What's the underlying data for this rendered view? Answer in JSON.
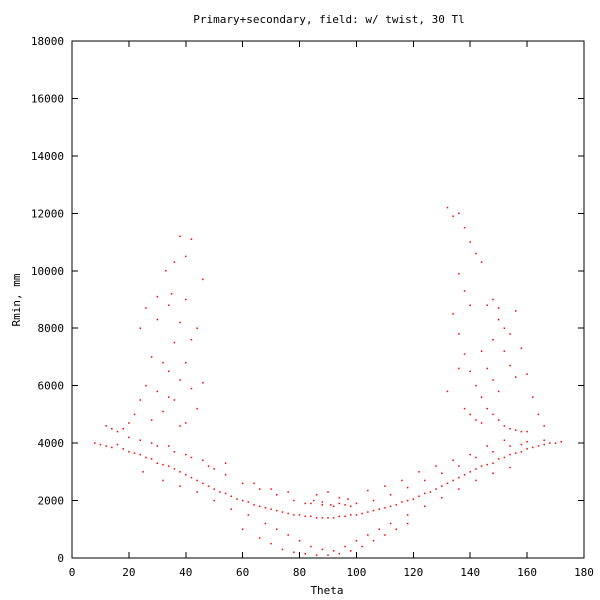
{
  "chart_data": {
    "type": "scatter",
    "title": "Primary+secondary, field: w/ twist, 30 Tl",
    "xlabel": "Theta",
    "ylabel": "Rmin, mm",
    "xlim": [
      0,
      180
    ],
    "ylim": [
      0,
      18000
    ],
    "xticks": [
      0,
      20,
      40,
      60,
      80,
      100,
      120,
      140,
      160,
      180
    ],
    "yticks": [
      0,
      2000,
      4000,
      6000,
      8000,
      10000,
      12000,
      14000,
      16000,
      18000
    ],
    "grid": false,
    "legend": "none",
    "series": [
      {
        "color": "#ff0000",
        "points": [
          [
            8,
            4000
          ],
          [
            10,
            3950
          ],
          [
            12,
            3900
          ],
          [
            14,
            3850
          ],
          [
            16,
            3950
          ],
          [
            18,
            3800
          ],
          [
            20,
            3700
          ],
          [
            22,
            3650
          ],
          [
            24,
            3600
          ],
          [
            26,
            3500
          ],
          [
            28,
            3450
          ],
          [
            30,
            3300
          ],
          [
            32,
            3250
          ],
          [
            34,
            3200
          ],
          [
            36,
            3100
          ],
          [
            38,
            3000
          ],
          [
            40,
            2900
          ],
          [
            42,
            2800
          ],
          [
            44,
            2700
          ],
          [
            46,
            2600
          ],
          [
            48,
            2500
          ],
          [
            50,
            2400
          ],
          [
            52,
            2300
          ],
          [
            54,
            2250
          ],
          [
            56,
            2150
          ],
          [
            58,
            2050
          ],
          [
            60,
            2000
          ],
          [
            62,
            1950
          ],
          [
            64,
            1850
          ],
          [
            66,
            1800
          ],
          [
            68,
            1750
          ],
          [
            70,
            1700
          ],
          [
            72,
            1650
          ],
          [
            74,
            1600
          ],
          [
            76,
            1550
          ],
          [
            78,
            1500
          ],
          [
            80,
            1500
          ],
          [
            82,
            1450
          ],
          [
            84,
            1450
          ],
          [
            86,
            1400
          ],
          [
            88,
            1400
          ],
          [
            90,
            1400
          ],
          [
            92,
            1400
          ],
          [
            94,
            1450
          ],
          [
            96,
            1450
          ],
          [
            98,
            1500
          ],
          [
            100,
            1500
          ],
          [
            102,
            1550
          ],
          [
            104,
            1600
          ],
          [
            106,
            1650
          ],
          [
            108,
            1700
          ],
          [
            110,
            1750
          ],
          [
            112,
            1800
          ],
          [
            114,
            1850
          ],
          [
            116,
            1950
          ],
          [
            118,
            2000
          ],
          [
            120,
            2050
          ],
          [
            122,
            2150
          ],
          [
            124,
            2250
          ],
          [
            126,
            2300
          ],
          [
            128,
            2400
          ],
          [
            130,
            2500
          ],
          [
            132,
            2600
          ],
          [
            134,
            2700
          ],
          [
            136,
            2800
          ],
          [
            138,
            2900
          ],
          [
            140,
            3000
          ],
          [
            142,
            3100
          ],
          [
            144,
            3200
          ],
          [
            146,
            3250
          ],
          [
            148,
            3300
          ],
          [
            150,
            3450
          ],
          [
            152,
            3500
          ],
          [
            154,
            3600
          ],
          [
            156,
            3650
          ],
          [
            158,
            3700
          ],
          [
            160,
            3800
          ],
          [
            162,
            3850
          ],
          [
            164,
            3900
          ],
          [
            166,
            3950
          ],
          [
            168,
            4000
          ],
          [
            170,
            4000
          ],
          [
            172,
            4050
          ],
          [
            20,
            4200
          ],
          [
            24,
            4100
          ],
          [
            30,
            3900
          ],
          [
            36,
            3700
          ],
          [
            42,
            3500
          ],
          [
            48,
            3200
          ],
          [
            54,
            2900
          ],
          [
            60,
            2600
          ],
          [
            66,
            2400
          ],
          [
            72,
            2200
          ],
          [
            78,
            2000
          ],
          [
            84,
            1900
          ],
          [
            88,
            1850
          ],
          [
            92,
            1800
          ],
          [
            96,
            1850
          ],
          [
            100,
            1900
          ],
          [
            106,
            2000
          ],
          [
            112,
            2200
          ],
          [
            118,
            2450
          ],
          [
            124,
            2700
          ],
          [
            130,
            2950
          ],
          [
            136,
            3200
          ],
          [
            142,
            3500
          ],
          [
            148,
            3700
          ],
          [
            154,
            3900
          ],
          [
            160,
            4050
          ],
          [
            166,
            4100
          ],
          [
            25,
            3000
          ],
          [
            32,
            2700
          ],
          [
            38,
            2500
          ],
          [
            44,
            2300
          ],
          [
            50,
            2000
          ],
          [
            56,
            1700
          ],
          [
            62,
            1500
          ],
          [
            68,
            1200
          ],
          [
            72,
            1000
          ],
          [
            76,
            800
          ],
          [
            80,
            600
          ],
          [
            84,
            400
          ],
          [
            88,
            300
          ],
          [
            92,
            250
          ],
          [
            96,
            400
          ],
          [
            100,
            600
          ],
          [
            104,
            800
          ],
          [
            108,
            1000
          ],
          [
            112,
            1200
          ],
          [
            118,
            1500
          ],
          [
            124,
            1800
          ],
          [
            130,
            2100
          ],
          [
            136,
            2400
          ],
          [
            142,
            2700
          ],
          [
            148,
            2950
          ],
          [
            154,
            3150
          ],
          [
            60,
            1000
          ],
          [
            66,
            700
          ],
          [
            70,
            500
          ],
          [
            74,
            300
          ],
          [
            78,
            200
          ],
          [
            82,
            150
          ],
          [
            86,
            100
          ],
          [
            90,
            100
          ],
          [
            94,
            150
          ],
          [
            98,
            250
          ],
          [
            102,
            400
          ],
          [
            106,
            600
          ],
          [
            110,
            800
          ],
          [
            114,
            1000
          ],
          [
            118,
            1200
          ],
          [
            82,
            1900
          ],
          [
            85,
            2000
          ],
          [
            88,
            1950
          ],
          [
            91,
            1850
          ],
          [
            94,
            1900
          ],
          [
            97,
            2050
          ],
          [
            86,
            2200
          ],
          [
            90,
            2300
          ],
          [
            94,
            2100
          ],
          [
            98,
            1800
          ],
          [
            64,
            2600
          ],
          [
            70,
            2400
          ],
          [
            76,
            2300
          ],
          [
            104,
            2350
          ],
          [
            110,
            2500
          ],
          [
            116,
            2700
          ],
          [
            122,
            3000
          ],
          [
            128,
            3200
          ],
          [
            134,
            3400
          ],
          [
            140,
            3600
          ],
          [
            46,
            3400
          ],
          [
            50,
            3100
          ],
          [
            54,
            3300
          ],
          [
            40,
            3600
          ],
          [
            34,
            3900
          ],
          [
            28,
            4000
          ],
          [
            146,
            3900
          ],
          [
            152,
            4100
          ],
          [
            158,
            3950
          ],
          [
            34,
            6500
          ],
          [
            36,
            7500
          ],
          [
            38,
            8200
          ],
          [
            40,
            9000
          ],
          [
            36,
            10300
          ],
          [
            40,
            10500
          ],
          [
            42,
            11100
          ],
          [
            38,
            11200
          ],
          [
            33,
            10000
          ],
          [
            35,
            9200
          ],
          [
            30,
            8300
          ],
          [
            28,
            7000
          ],
          [
            26,
            6000
          ],
          [
            24,
            5500
          ],
          [
            22,
            5000
          ],
          [
            20,
            4700
          ],
          [
            18,
            4500
          ],
          [
            16,
            4400
          ],
          [
            14,
            4500
          ],
          [
            12,
            4600
          ],
          [
            30,
            5800
          ],
          [
            32,
            6800
          ],
          [
            36,
            5500
          ],
          [
            38,
            6200
          ],
          [
            40,
            6800
          ],
          [
            42,
            7600
          ],
          [
            44,
            8000
          ],
          [
            46,
            9700
          ],
          [
            40,
            4700
          ],
          [
            44,
            5200
          ],
          [
            28,
            4800
          ],
          [
            32,
            5100
          ],
          [
            34,
            5600
          ],
          [
            38,
            4600
          ],
          [
            42,
            5900
          ],
          [
            46,
            6100
          ],
          [
            24,
            8000
          ],
          [
            26,
            8700
          ],
          [
            30,
            9100
          ],
          [
            34,
            8800
          ],
          [
            132,
            12200
          ],
          [
            134,
            11900
          ],
          [
            136,
            12000
          ],
          [
            138,
            11500
          ],
          [
            140,
            11000
          ],
          [
            142,
            10600
          ],
          [
            144,
            10300
          ],
          [
            136,
            9900
          ],
          [
            138,
            9300
          ],
          [
            140,
            8800
          ],
          [
            134,
            8500
          ],
          [
            136,
            7800
          ],
          [
            138,
            7100
          ],
          [
            140,
            6500
          ],
          [
            142,
            6000
          ],
          [
            144,
            5600
          ],
          [
            146,
            5200
          ],
          [
            148,
            5000
          ],
          [
            150,
            4800
          ],
          [
            152,
            4600
          ],
          [
            154,
            4500
          ],
          [
            156,
            4450
          ],
          [
            158,
            4400
          ],
          [
            160,
            4400
          ],
          [
            148,
            7600
          ],
          [
            150,
            8300
          ],
          [
            146,
            8800
          ],
          [
            152,
            7200
          ],
          [
            154,
            6700
          ],
          [
            156,
            6300
          ],
          [
            144,
            7200
          ],
          [
            146,
            6600
          ],
          [
            148,
            6200
          ],
          [
            150,
            5800
          ],
          [
            138,
            5200
          ],
          [
            140,
            5000
          ],
          [
            142,
            4800
          ],
          [
            144,
            4700
          ],
          [
            136,
            6600
          ],
          [
            132,
            5800
          ],
          [
            148,
            9000
          ],
          [
            150,
            8700
          ],
          [
            152,
            8000
          ],
          [
            154,
            7800
          ],
          [
            156,
            8600
          ],
          [
            158,
            7300
          ],
          [
            160,
            6400
          ],
          [
            162,
            5600
          ],
          [
            164,
            5000
          ],
          [
            166,
            4600
          ]
        ]
      }
    ]
  }
}
